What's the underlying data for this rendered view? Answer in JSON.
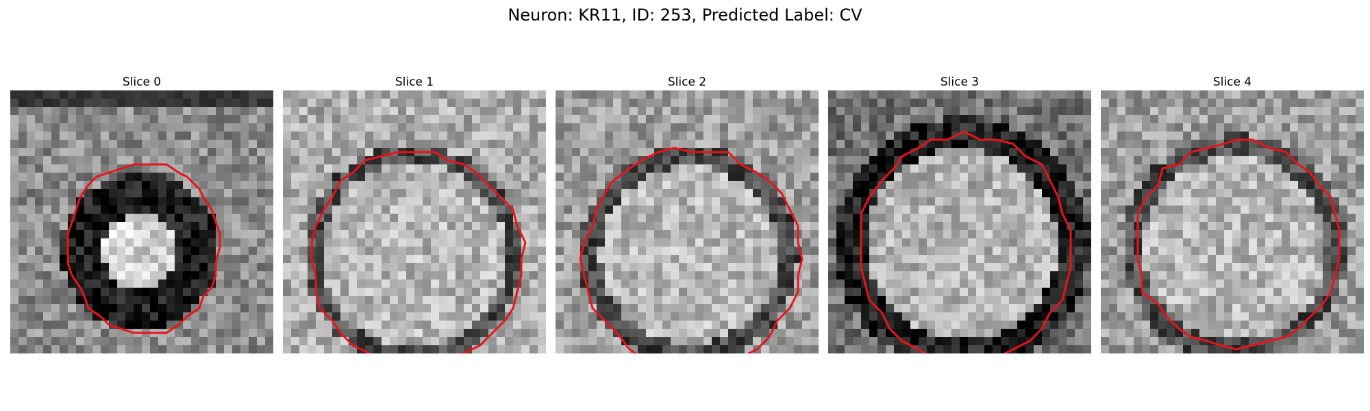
{
  "figure": {
    "title": "Neuron: KR11, ID: 253, Predicted Label: CV"
  },
  "panels": [
    {
      "title": "Slice 0"
    },
    {
      "title": "Slice 1"
    },
    {
      "title": "Slice 2"
    },
    {
      "title": "Slice 3"
    },
    {
      "title": "Slice 4"
    }
  ],
  "colors": {
    "contour": "#e8141a",
    "background": "#ffffff"
  }
}
